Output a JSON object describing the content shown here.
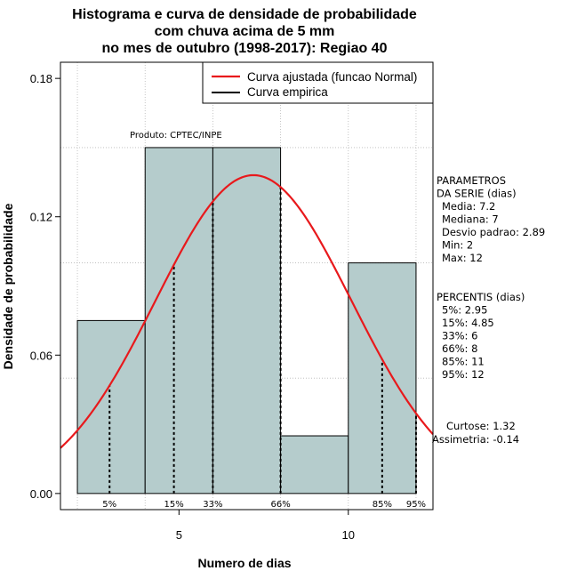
{
  "chart_data": {
    "type": "bar",
    "title_lines": [
      "Histograma e curva de densidade de probabilidade",
      "com chuva acima de 5 mm",
      "no mes de outubro (1998-2017): Regiao 40"
    ],
    "xlabel": "Numero de dias",
    "ylabel": "Densidade de probabilidade",
    "xlim": [
      1.5,
      12.5
    ],
    "ylim": [
      -0.007,
      0.187
    ],
    "x_ticks": [
      5,
      10
    ],
    "y_ticks": [
      0.0,
      0.06,
      0.12,
      0.18
    ],
    "y_tick_labels": [
      "0.00",
      "0.06",
      "0.12",
      "0.18"
    ],
    "grid": true,
    "bins": [
      {
        "start": 2,
        "end": 4,
        "density": 0.075
      },
      {
        "start": 4,
        "end": 6,
        "density": 0.15
      },
      {
        "start": 6,
        "end": 8,
        "density": 0.15
      },
      {
        "start": 8,
        "end": 10,
        "density": 0.025
      },
      {
        "start": 10,
        "end": 12,
        "density": 0.1
      }
    ],
    "bar_color": "#b5cccc",
    "fitted_curve": {
      "name": "Curva ajustada (funcao Normal)",
      "mean": 7.2,
      "sd": 2.89,
      "color": "#e8191c"
    },
    "empirical_curve": {
      "name": "Curva empirica",
      "color": "#000000"
    },
    "legend_position": "top-right",
    "percentile_lines": [
      {
        "label": "5%",
        "x": 2.95
      },
      {
        "label": "15%",
        "x": 4.85
      },
      {
        "label": "33%",
        "x": 6
      },
      {
        "label": "66%",
        "x": 8
      },
      {
        "label": "85%",
        "x": 11
      },
      {
        "label": "95%",
        "x": 12
      }
    ],
    "annotation": "Produto: CPTEC/INPE",
    "panel_parametros": [
      "PARAMETROS",
      "DA SERIE (dias)",
      "Media: 7.2",
      "Mediana: 7",
      "Desvio padrao: 2.89",
      "Min: 2",
      "Max: 12"
    ],
    "panel_percentis": [
      "PERCENTIS (dias)",
      "5%: 2.95",
      "15%: 4.85",
      "33%: 6",
      "66%: 8",
      "85%: 11",
      "95%: 12"
    ],
    "curtose": "Curtose: 1.32",
    "assimetria": "Assimetria: -0.14"
  }
}
